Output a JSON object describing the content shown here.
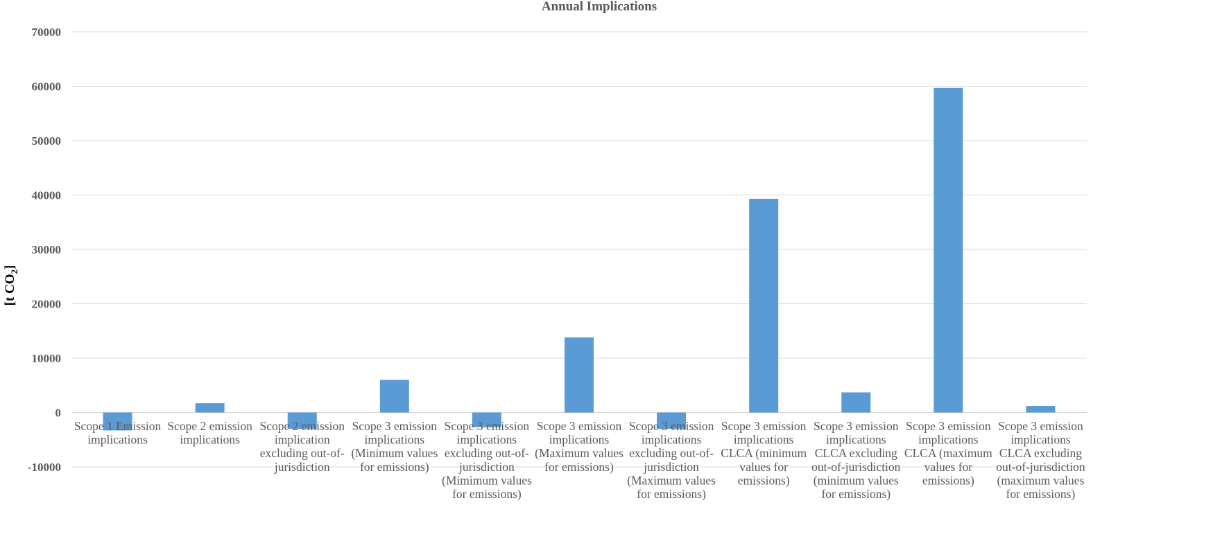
{
  "chart_data": {
    "type": "bar",
    "title": "Annual Implications",
    "ylabel_main": "[t CO",
    "ylabel_sub": "2",
    "ylabel_end": "]",
    "ylim": [
      -10000,
      70000
    ],
    "yticks": [
      -10000,
      0,
      10000,
      20000,
      30000,
      40000,
      50000,
      60000,
      70000
    ],
    "grid": true,
    "color": "#5b9bd5",
    "categories": [
      [
        "Scope 1 Emission",
        "implications"
      ],
      [
        "Scope 2 emission",
        "implications"
      ],
      [
        "Scope 2 emission",
        "implication",
        "excluding out-of-",
        "jurisdiction"
      ],
      [
        "Scope 3 emission",
        "implications",
        "(Minimum values",
        "for emissions)"
      ],
      [
        "Scope 3 emission",
        "implications",
        "excluding out-of-",
        "jurisdiction",
        "(Mimimum values",
        "for emissions)"
      ],
      [
        "Scope 3 emission",
        "implications",
        "(Maximum values",
        "for emissions)"
      ],
      [
        "Scope 3 emission",
        "implications",
        "excluding out-of-",
        "jurisdiction",
        "(Maximum values",
        "for emissions)"
      ],
      [
        "Scope 3 emission",
        "implications",
        "CLCA (minimum",
        "values for",
        "emissions)"
      ],
      [
        "Scope 3 emission",
        "implications",
        "CLCA excluding",
        "out-of-jurisdiction",
        "(minimum values",
        "for emissions)"
      ],
      [
        "Scope 3 emission",
        "implications",
        "CLCA (maximum",
        "values for",
        "emissions)"
      ],
      [
        "Scope 3 emission",
        "implications",
        "CLCA excluding",
        "out-of-jurisdiction",
        "(maximum values",
        "for emissions)"
      ]
    ],
    "values": [
      -3300,
      1700,
      -3000,
      6000,
      -2700,
      13800,
      -3000,
      39300,
      3700,
      59700,
      1200
    ]
  }
}
